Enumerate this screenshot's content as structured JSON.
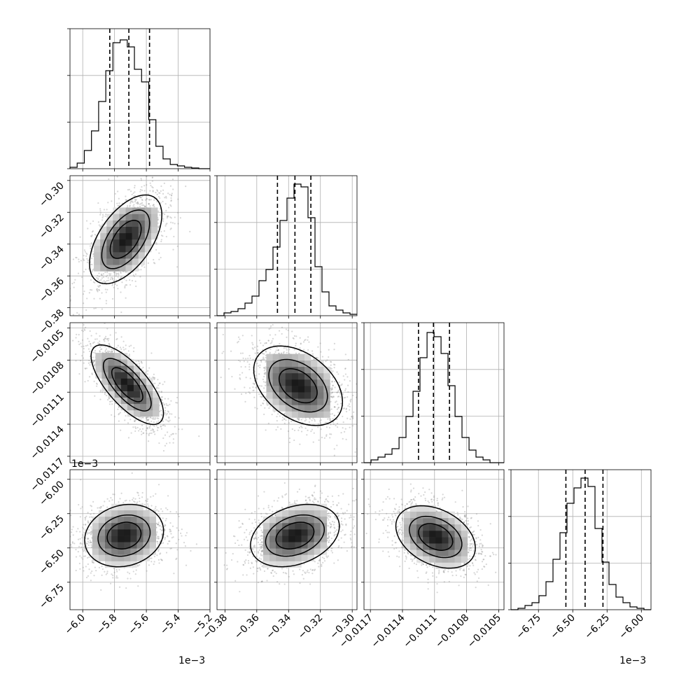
{
  "chart_data": {
    "type": "corner",
    "variables": [
      {
        "range": [
          -6.08,
          -5.2
        ],
        "ticks": [
          -6.0,
          -5.8,
          -5.6,
          -5.4,
          -5.2
        ],
        "tick_labels": [
          "−6.0",
          "−5.8",
          "−5.6",
          "−5.4",
          "−5.2"
        ],
        "offset_label": "1e−3",
        "quantiles": [
          -5.83,
          -5.71,
          -5.58
        ],
        "hist_x": [
          -6.08,
          -6.035,
          -5.99,
          -5.945,
          -5.9,
          -5.855,
          -5.81,
          -5.765,
          -5.72,
          -5.675,
          -5.63,
          -5.585,
          -5.54,
          -5.495,
          -5.45,
          -5.405,
          -5.36,
          -5.315,
          -5.27,
          -5.225,
          -5.2
        ],
        "hist_y": [
          0.01,
          0.04,
          0.13,
          0.27,
          0.48,
          0.7,
          0.9,
          0.92,
          0.87,
          0.71,
          0.62,
          0.35,
          0.16,
          0.07,
          0.03,
          0.02,
          0.01,
          0.005,
          0.0,
          0.0
        ]
      },
      {
        "range": [
          -0.385,
          -0.297
        ],
        "ticks": [
          -0.38,
          -0.36,
          -0.34,
          -0.32,
          -0.3
        ],
        "tick_labels": [
          "−0.38",
          "−0.36",
          "−0.34",
          "−0.32",
          "−0.30"
        ],
        "offset_label": "",
        "quantiles": [
          -0.347,
          -0.336,
          -0.326
        ],
        "hist_x": [
          -0.385,
          -0.3806,
          -0.3762,
          -0.3718,
          -0.3674,
          -0.363,
          -0.3586,
          -0.3542,
          -0.3498,
          -0.3454,
          -0.341,
          -0.3366,
          -0.3322,
          -0.3278,
          -0.3234,
          -0.319,
          -0.3146,
          -0.3102,
          -0.3058,
          -0.3014,
          -0.297
        ],
        "hist_y": [
          0.0,
          0.02,
          0.03,
          0.05,
          0.09,
          0.14,
          0.25,
          0.33,
          0.49,
          0.68,
          0.84,
          0.94,
          0.92,
          0.7,
          0.35,
          0.17,
          0.07,
          0.04,
          0.02,
          0.01
        ]
      },
      {
        "range": [
          -0.01176,
          -0.01045
        ],
        "ticks": [
          -0.0117,
          -0.0114,
          -0.0111,
          -0.0108,
          -0.0105
        ],
        "tick_labels": [
          "−0.0117",
          "−0.0114",
          "−0.0111",
          "−0.0108",
          "−0.0105"
        ],
        "offset_label": "",
        "quantiles": [
          -0.01125,
          -0.01111,
          -0.01096
        ],
        "hist_x": [
          -0.01176,
          -0.011694,
          -0.011629,
          -0.011563,
          -0.011498,
          -0.011432,
          -0.011367,
          -0.011301,
          -0.011236,
          -0.01117,
          -0.011105,
          -0.011039,
          -0.010974,
          -0.010908,
          -0.010843,
          -0.010777,
          -0.010712,
          -0.010646,
          -0.010581,
          -0.010515,
          -0.01045
        ],
        "hist_y": [
          0.0,
          0.02,
          0.04,
          0.06,
          0.1,
          0.18,
          0.33,
          0.51,
          0.75,
          0.93,
          0.9,
          0.78,
          0.55,
          0.33,
          0.18,
          0.09,
          0.04,
          0.02,
          0.0,
          0.0
        ]
      },
      {
        "range": [
          -6.95,
          -5.93
        ],
        "ticks": [
          -6.75,
          -6.5,
          -6.25,
          -6.0
        ],
        "tick_labels": [
          "−6.75",
          "−6.50",
          "−6.25",
          "−6.00"
        ],
        "offset_label": "1e−3",
        "quantiles": [
          -6.55,
          -6.41,
          -6.28
        ],
        "hist_x": [
          -6.95,
          -6.899,
          -6.848,
          -6.797,
          -6.746,
          -6.695,
          -6.644,
          -6.593,
          -6.542,
          -6.491,
          -6.44,
          -6.389,
          -6.338,
          -6.287,
          -6.236,
          -6.185,
          -6.134,
          -6.083,
          -6.032,
          -5.981,
          -5.93
        ],
        "hist_y": [
          0.0,
          0.01,
          0.03,
          0.05,
          0.1,
          0.2,
          0.36,
          0.55,
          0.76,
          0.87,
          0.94,
          0.88,
          0.58,
          0.34,
          0.18,
          0.09,
          0.05,
          0.02,
          0.01,
          0.0
        ]
      }
    ],
    "pairs": [
      {
        "col": 0,
        "row": 1,
        "center": [
          -5.73,
          -0.337
        ],
        "sigma": [
          0.11,
          0.0135
        ],
        "rho": 0.55,
        "mode_shift": [
          0.0,
          0.0
        ]
      },
      {
        "col": 0,
        "row": 2,
        "center": [
          -5.72,
          -0.01103
        ],
        "sigma": [
          0.11,
          0.00018
        ],
        "rho": -0.72,
        "mode_shift": [
          0.0,
          0.0
        ]
      },
      {
        "col": 1,
        "row": 2,
        "center": [
          -0.334,
          -0.01104
        ],
        "sigma": [
          0.0135,
          0.00018
        ],
        "rho": -0.4,
        "mode_shift": [
          0.0,
          0.0
        ]
      },
      {
        "col": 0,
        "row": 3,
        "center": [
          -5.74,
          -6.41
        ],
        "sigma": [
          0.12,
          0.11
        ],
        "rho": 0.15,
        "mode_shift": [
          -0.04,
          -0.04
        ]
      },
      {
        "col": 1,
        "row": 3,
        "center": [
          -0.336,
          -6.41
        ],
        "sigma": [
          0.0135,
          0.11
        ],
        "rho": 0.3,
        "mode_shift": [
          0.0,
          0.0
        ]
      },
      {
        "col": 2,
        "row": 3,
        "center": [
          -0.01109,
          -6.42
        ],
        "sigma": [
          0.00018,
          0.11
        ],
        "rho": -0.35,
        "mode_shift": [
          0.0,
          0.0
        ]
      }
    ],
    "levels": [
      0.118,
      0.393,
      0.675
    ],
    "colors": {
      "line": "#000000",
      "grid": "#b0b0b0",
      "scatter": "#8c8c8c"
    },
    "grid": true
  }
}
